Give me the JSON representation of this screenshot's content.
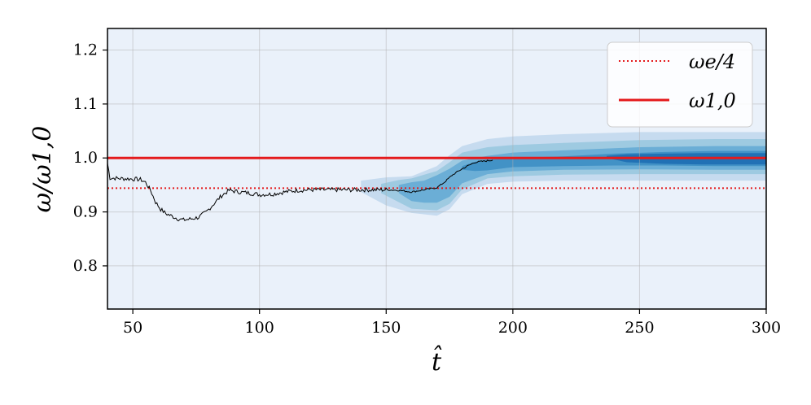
{
  "chart_data": {
    "type": "line",
    "xlabel": "t̂",
    "ylabel": "ω/ω1,0",
    "xlim": [
      40,
      300
    ],
    "ylim": [
      0.72,
      1.24
    ],
    "x_ticks": [
      50,
      100,
      150,
      200,
      250,
      300
    ],
    "y_ticks": [
      0.8,
      0.9,
      1.0,
      1.1,
      1.2
    ],
    "x_tick_labels": [
      "50",
      "100",
      "150",
      "200",
      "250",
      "300"
    ],
    "y_tick_labels": [
      "0.8",
      "0.9",
      "1.0",
      "1.1",
      "1.2"
    ],
    "grid": true,
    "legend_position": "top-right",
    "legend": [
      {
        "label": "ωe/4",
        "style": "dotted",
        "color": "#e41a1c"
      },
      {
        "label": "ω1,0",
        "style": "solid",
        "color": "#e41a1c"
      }
    ],
    "reference_lines": [
      {
        "name": "ωe/4",
        "y": 0.944,
        "style": "dotted",
        "color": "#e41a1c"
      },
      {
        "name": "ω1,0",
        "y": 1.0,
        "style": "solid",
        "color": "#e41a1c"
      }
    ],
    "trace": {
      "color": "#000000",
      "points": [
        [
          40,
          0.99
        ],
        [
          41,
          0.963
        ],
        [
          45,
          0.962
        ],
        [
          50,
          0.961
        ],
        [
          53,
          0.96
        ],
        [
          55,
          0.955
        ],
        [
          57,
          0.94
        ],
        [
          59,
          0.918
        ],
        [
          61,
          0.905
        ],
        [
          63,
          0.897
        ],
        [
          65,
          0.893
        ],
        [
          68,
          0.887
        ],
        [
          70,
          0.885
        ],
        [
          73,
          0.887
        ],
        [
          76,
          0.89
        ],
        [
          79,
          0.9
        ],
        [
          82,
          0.915
        ],
        [
          85,
          0.93
        ],
        [
          88,
          0.94
        ],
        [
          92,
          0.937
        ],
        [
          96,
          0.935
        ],
        [
          100,
          0.932
        ],
        [
          105,
          0.933
        ],
        [
          110,
          0.937
        ],
        [
          115,
          0.94
        ],
        [
          120,
          0.941
        ],
        [
          130,
          0.941
        ],
        [
          140,
          0.941
        ],
        [
          150,
          0.941
        ],
        [
          155,
          0.94
        ],
        [
          160,
          0.937
        ],
        [
          165,
          0.941
        ],
        [
          170,
          0.945
        ],
        [
          173,
          0.955
        ],
        [
          176,
          0.968
        ],
        [
          180,
          0.98
        ],
        [
          185,
          0.992
        ],
        [
          192,
          0.996
        ]
      ]
    },
    "density": {
      "colors": [
        "#c6dbef",
        "#9ecae1",
        "#6baed6",
        "#4292c6",
        "#2171b5"
      ],
      "bands": [
        {
          "x": [
            140,
            150,
            160,
            170,
            175,
            180,
            190,
            200,
            220,
            250,
            280,
            300
          ],
          "lower": [
            0.937,
            0.912,
            0.898,
            0.893,
            0.905,
            0.933,
            0.952,
            0.956,
            0.958,
            0.958,
            0.958,
            0.958
          ],
          "upper": [
            0.958,
            0.964,
            0.966,
            0.985,
            1.005,
            1.022,
            1.035,
            1.04,
            1.044,
            1.048,
            1.048,
            1.048
          ]
        },
        {
          "x": [
            148,
            155,
            160,
            170,
            175,
            180,
            190,
            200,
            220,
            250,
            280,
            300
          ],
          "lower": [
            0.935,
            0.918,
            0.906,
            0.903,
            0.915,
            0.942,
            0.962,
            0.966,
            0.969,
            0.97,
            0.97,
            0.97
          ],
          "upper": [
            0.952,
            0.959,
            0.962,
            0.976,
            0.992,
            1.01,
            1.02,
            1.024,
            1.028,
            1.033,
            1.035,
            1.035
          ]
        },
        {
          "x": [
            155,
            160,
            165,
            170,
            175,
            180,
            190,
            200,
            220,
            250,
            280,
            300
          ],
          "lower": [
            0.935,
            0.92,
            0.917,
            0.917,
            0.928,
            0.953,
            0.97,
            0.975,
            0.978,
            0.979,
            0.978,
            0.978
          ],
          "upper": [
            0.95,
            0.955,
            0.958,
            0.968,
            0.98,
            0.995,
            1.004,
            1.01,
            1.014,
            1.02,
            1.022,
            1.022
          ]
        },
        {
          "x": [
            180,
            185,
            190,
            200,
            220,
            240,
            260,
            280,
            300
          ],
          "lower": [
            0.978,
            0.976,
            0.977,
            0.983,
            0.985,
            0.986,
            0.986,
            0.985,
            0.985
          ],
          "upper": [
            0.985,
            0.993,
            0.997,
            1.0,
            1.003,
            1.008,
            1.011,
            1.013,
            1.013
          ]
        },
        {
          "x": [
            237,
            245,
            260,
            275,
            290,
            300
          ],
          "lower": [
            1.0,
            0.992,
            0.989,
            0.988,
            0.988,
            0.988
          ],
          "upper": [
            1.004,
            1.007,
            1.008,
            1.009,
            1.009,
            1.009
          ]
        }
      ]
    }
  }
}
